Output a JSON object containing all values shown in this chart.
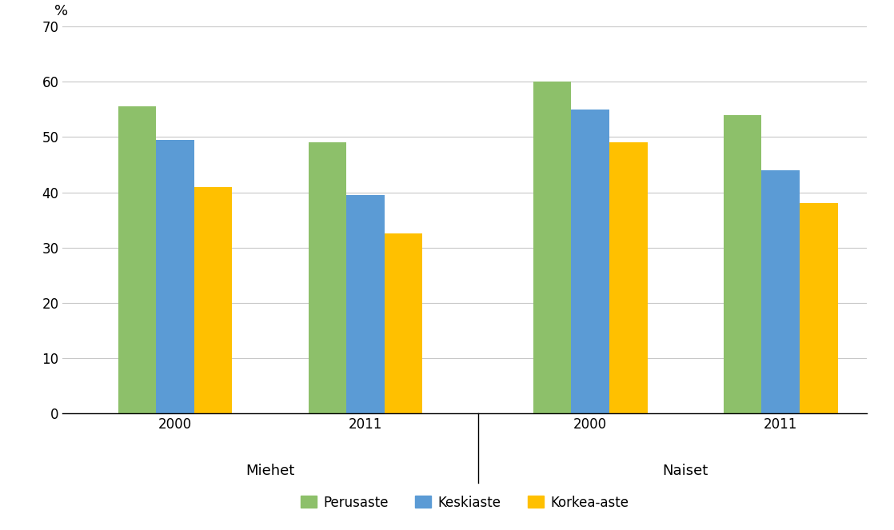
{
  "ylabel": "%",
  "ylim": [
    0,
    70
  ],
  "yticks": [
    0,
    10,
    20,
    30,
    40,
    50,
    60,
    70
  ],
  "groups": [
    {
      "label": "2000",
      "section": "Miehet",
      "values": [
        55.5,
        49.5,
        41.0
      ]
    },
    {
      "label": "2011",
      "section": "Miehet",
      "values": [
        49.0,
        39.5,
        32.5
      ]
    },
    {
      "label": "2000",
      "section": "Naiset",
      "values": [
        60.0,
        55.0,
        49.0
      ]
    },
    {
      "label": "2011",
      "section": "Naiset",
      "values": [
        54.0,
        44.0,
        38.0
      ]
    }
  ],
  "series_labels": [
    "Perusaste",
    "Keskiaste",
    "Korkea-aste"
  ],
  "series_colors": [
    "#8DC06A",
    "#5B9BD5",
    "#FFC000"
  ],
  "section_labels": [
    "Miehet",
    "Naiset"
  ],
  "bar_width": 0.22,
  "background_color": "#ffffff",
  "grid_color": "#c8c8c8",
  "tick_fontsize": 12,
  "ylabel_fontsize": 13,
  "legend_fontsize": 12,
  "section_label_fontsize": 13,
  "year_label_fontsize": 12,
  "group_centers": [
    1.0,
    2.1,
    3.4,
    4.5
  ]
}
